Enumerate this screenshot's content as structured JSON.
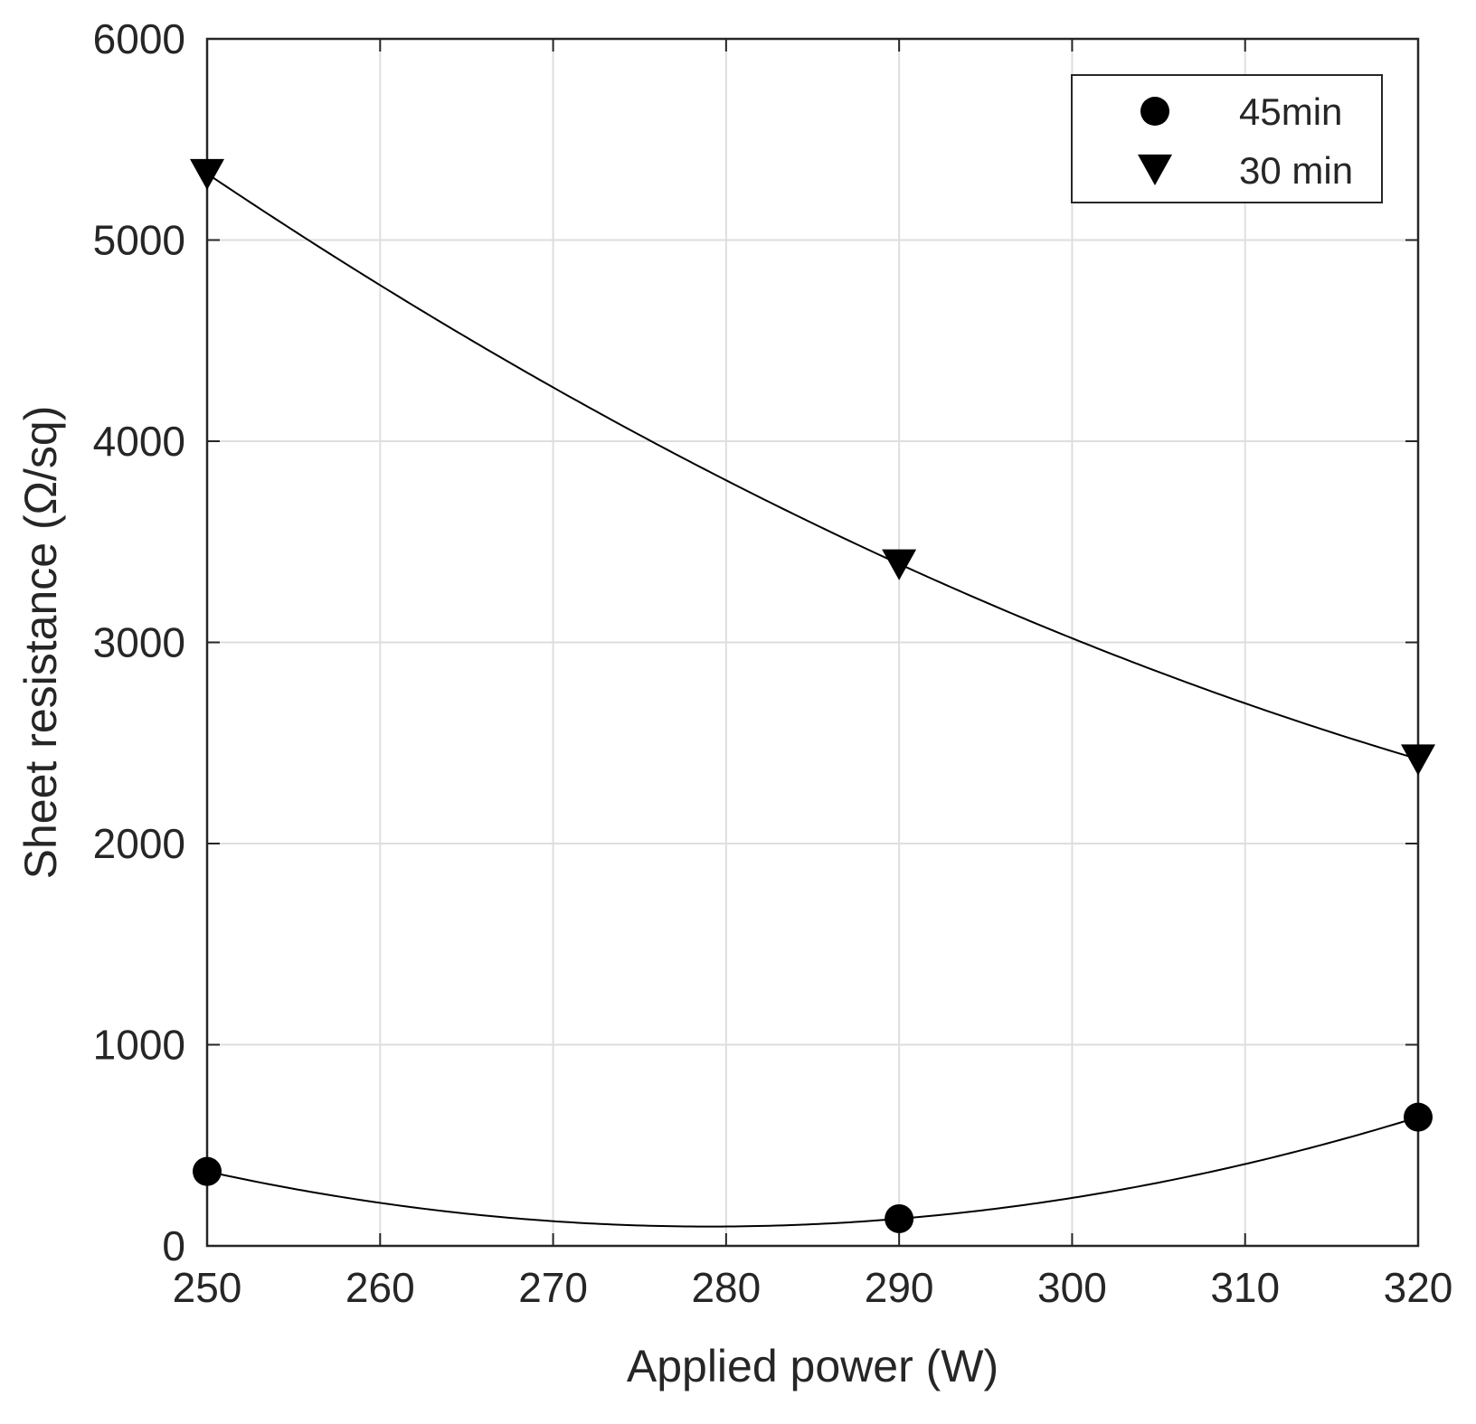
{
  "chart_data": {
    "type": "scatter",
    "title": "",
    "xlabel": "Applied power (W)",
    "ylabel": "Sheet resistance (Ω/sq)",
    "xlim": [
      250,
      320
    ],
    "ylim": [
      0,
      6000
    ],
    "xticks": [
      "250",
      "260",
      "270",
      "280",
      "290",
      "300",
      "310",
      "320"
    ],
    "yticks": [
      "0",
      "1000",
      "2000",
      "3000",
      "4000",
      "5000",
      "6000"
    ],
    "grid": true,
    "legend_position": "top-right",
    "series": [
      {
        "name": "45min",
        "marker": "circle",
        "color": "#000000",
        "points": [
          {
            "x": 250,
            "y": 370
          },
          {
            "x": 290,
            "y": 135
          },
          {
            "x": 320,
            "y": 640
          }
        ],
        "fit": "quadratic"
      },
      {
        "name": "30 min",
        "marker": "triangle-down",
        "color": "#000000",
        "points": [
          {
            "x": 250,
            "y": 5330
          },
          {
            "x": 290,
            "y": 3390
          },
          {
            "x": 320,
            "y": 2420
          }
        ],
        "fit": "quadratic"
      }
    ]
  }
}
